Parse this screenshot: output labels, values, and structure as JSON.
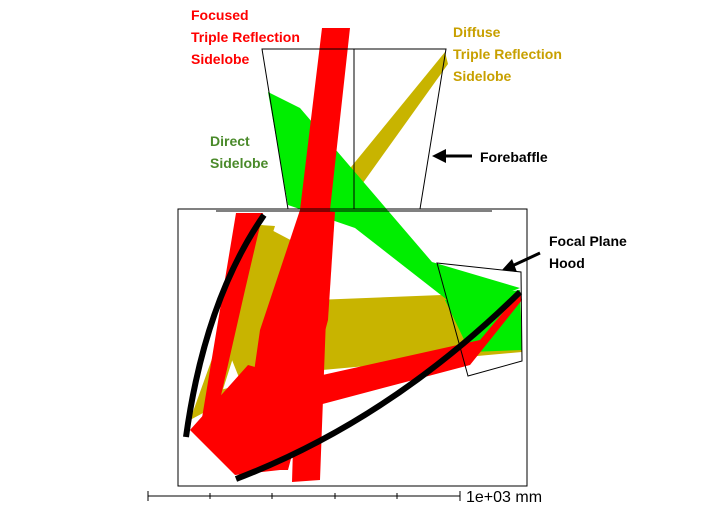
{
  "labels": {
    "focused": [
      "Focused",
      "Triple Reflection",
      "Sidelobe"
    ],
    "diffuse": [
      "Diffuse",
      "Triple Reflection",
      "Sidelobe"
    ],
    "direct": [
      "Direct",
      "Sidelobe"
    ],
    "forebaffle": "Forebaffle",
    "hood": [
      "Focal Plane",
      "Hood"
    ]
  },
  "scale_bar": {
    "label": "1e+03 mm"
  },
  "colors": {
    "focused": "#ff0000",
    "diffuse": "#c8b400",
    "direct": "#00ee00",
    "direct_label": "#4a8a2a",
    "diffuse_label": "#c8a000",
    "outline": "#000000",
    "mirror": "#000000"
  }
}
